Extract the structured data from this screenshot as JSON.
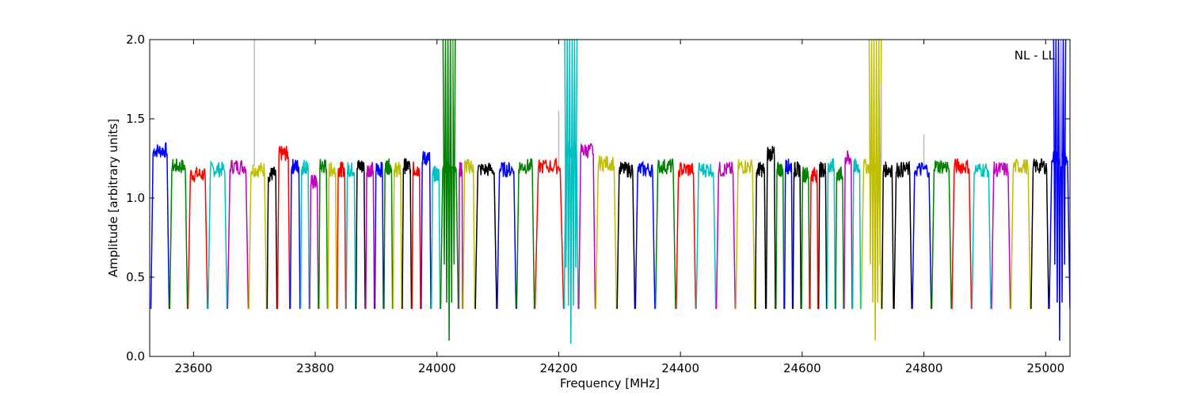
{
  "chart_data": {
    "type": "line",
    "title": "",
    "annotation": "NL - LL",
    "xlabel": "Frequency [MHz]",
    "ylabel": "Amplitude [arbitrary units]",
    "xlim": [
      23528,
      25040
    ],
    "ylim": [
      0.0,
      2.0
    ],
    "xticks": [
      23600,
      23800,
      24000,
      24200,
      24400,
      24600,
      24800,
      25000
    ],
    "yticks": [
      0.0,
      0.5,
      1.0,
      1.5,
      2.0
    ],
    "xtick_labels": [
      "23600",
      "23800",
      "24000",
      "24200",
      "24400",
      "24600",
      "24800",
      "25000"
    ],
    "ytick_labels": [
      "0.0",
      "0.5",
      "1.0",
      "1.5",
      "2.0"
    ],
    "grid": false,
    "legend": "none",
    "color_cycle": [
      "#0000ff",
      "#008000",
      "#ff0000",
      "#00bfbf",
      "#bf00bf",
      "#bfbf00",
      "#000000"
    ],
    "spike_color": "#bbbbbb",
    "spectral_windows": [
      {
        "x_start": 23530,
        "x_end": 23560,
        "color": "#0000ff",
        "level": 1.3
      },
      {
        "x_start": 23561,
        "x_end": 23590,
        "color": "#008000",
        "level": 1.2
      },
      {
        "x_start": 23591,
        "x_end": 23623,
        "color": "#ff0000",
        "level": 1.15
      },
      {
        "x_start": 23624,
        "x_end": 23655,
        "color": "#00bfbf",
        "level": 1.18
      },
      {
        "x_start": 23656,
        "x_end": 23690,
        "color": "#bf00bf",
        "level": 1.2
      },
      {
        "x_start": 23691,
        "x_end": 23720,
        "color": "#bfbf00",
        "level": 1.18
      },
      {
        "x_start": 23721,
        "x_end": 23737,
        "color": "#000000",
        "level": 1.15
      },
      {
        "x_start": 23738,
        "x_end": 23758,
        "color": "#ff0000",
        "level": 1.28
      },
      {
        "x_start": 23759,
        "x_end": 23775,
        "color": "#0000ff",
        "level": 1.2
      },
      {
        "x_start": 23776,
        "x_end": 23790,
        "color": "#00bfbf",
        "level": 1.2
      },
      {
        "x_start": 23791,
        "x_end": 23805,
        "color": "#bf00bf",
        "level": 1.1
      },
      {
        "x_start": 23806,
        "x_end": 23820,
        "color": "#008000",
        "level": 1.2
      },
      {
        "x_start": 23821,
        "x_end": 23835,
        "color": "#bfbf00",
        "level": 1.18
      },
      {
        "x_start": 23836,
        "x_end": 23850,
        "color": "#ff0000",
        "level": 1.18
      },
      {
        "x_start": 23851,
        "x_end": 23866,
        "color": "#00bfbf",
        "level": 1.18
      },
      {
        "x_start": 23867,
        "x_end": 23882,
        "color": "#000000",
        "level": 1.2
      },
      {
        "x_start": 23883,
        "x_end": 23897,
        "color": "#bf00bf",
        "level": 1.18
      },
      {
        "x_start": 23898,
        "x_end": 23912,
        "color": "#0000ff",
        "level": 1.18
      },
      {
        "x_start": 23913,
        "x_end": 23927,
        "color": "#008000",
        "level": 1.2
      },
      {
        "x_start": 23928,
        "x_end": 23942,
        "color": "#bfbf00",
        "level": 1.18
      },
      {
        "x_start": 23943,
        "x_end": 23958,
        "color": "#000000",
        "level": 1.2
      },
      {
        "x_start": 23959,
        "x_end": 23973,
        "color": "#ff0000",
        "level": 1.18
      },
      {
        "x_start": 23974,
        "x_end": 23990,
        "color": "#0000ff",
        "level": 1.25
      },
      {
        "x_start": 23991,
        "x_end": 24005,
        "color": "#00bfbf",
        "level": 1.15
      },
      {
        "x_start": 24006,
        "x_end": 24035,
        "color": "#008000",
        "level": 1.2
      },
      {
        "x_start": 24036,
        "x_end": 24042,
        "color": "#bf00bf",
        "level": 1.18
      },
      {
        "x_start": 24043,
        "x_end": 24062,
        "color": "#bfbf00",
        "level": 1.2
      },
      {
        "x_start": 24063,
        "x_end": 24098,
        "color": "#000000",
        "level": 1.18
      },
      {
        "x_start": 24099,
        "x_end": 24130,
        "color": "#0000ff",
        "level": 1.18
      },
      {
        "x_start": 24131,
        "x_end": 24160,
        "color": "#008000",
        "level": 1.2
      },
      {
        "x_start": 24161,
        "x_end": 24208,
        "color": "#ff0000",
        "level": 1.2
      },
      {
        "x_start": 24209,
        "x_end": 24232,
        "color": "#00bfbf",
        "level": 1.3
      },
      {
        "x_start": 24233,
        "x_end": 24260,
        "color": "#bf00bf",
        "level": 1.3
      },
      {
        "x_start": 24261,
        "x_end": 24295,
        "color": "#bfbf00",
        "level": 1.22
      },
      {
        "x_start": 24296,
        "x_end": 24325,
        "color": "#000000",
        "level": 1.18
      },
      {
        "x_start": 24326,
        "x_end": 24358,
        "color": "#0000ff",
        "level": 1.18
      },
      {
        "x_start": 24359,
        "x_end": 24392,
        "color": "#008000",
        "level": 1.2
      },
      {
        "x_start": 24393,
        "x_end": 24425,
        "color": "#ff0000",
        "level": 1.18
      },
      {
        "x_start": 24426,
        "x_end": 24458,
        "color": "#00bfbf",
        "level": 1.18
      },
      {
        "x_start": 24459,
        "x_end": 24490,
        "color": "#bf00bf",
        "level": 1.18
      },
      {
        "x_start": 24491,
        "x_end": 24522,
        "color": "#bfbf00",
        "level": 1.2
      },
      {
        "x_start": 24523,
        "x_end": 24540,
        "color": "#000000",
        "level": 1.18
      },
      {
        "x_start": 24541,
        "x_end": 24556,
        "color": "#000000",
        "level": 1.28
      },
      {
        "x_start": 24557,
        "x_end": 24570,
        "color": "#008000",
        "level": 1.18
      },
      {
        "x_start": 24571,
        "x_end": 24584,
        "color": "#0000ff",
        "level": 1.2
      },
      {
        "x_start": 24585,
        "x_end": 24598,
        "color": "#000000",
        "level": 1.18
      },
      {
        "x_start": 24599,
        "x_end": 24612,
        "color": "#008000",
        "level": 1.15
      },
      {
        "x_start": 24613,
        "x_end": 24626,
        "color": "#ff0000",
        "level": 1.15
      },
      {
        "x_start": 24627,
        "x_end": 24640,
        "color": "#000000",
        "level": 1.18
      },
      {
        "x_start": 24641,
        "x_end": 24654,
        "color": "#00bfbf",
        "level": 1.2
      },
      {
        "x_start": 24655,
        "x_end": 24668,
        "color": "#008000",
        "level": 1.15
      },
      {
        "x_start": 24669,
        "x_end": 24682,
        "color": "#bf00bf",
        "level": 1.25
      },
      {
        "x_start": 24683,
        "x_end": 24696,
        "color": "#00bfbf",
        "level": 1.2
      },
      {
        "x_start": 24697,
        "x_end": 24730,
        "color": "#bfbf00",
        "level": 1.2
      },
      {
        "x_start": 24731,
        "x_end": 24750,
        "color": "#000000",
        "level": 1.18
      },
      {
        "x_start": 24751,
        "x_end": 24780,
        "color": "#000000",
        "level": 1.18
      },
      {
        "x_start": 24781,
        "x_end": 24812,
        "color": "#0000ff",
        "level": 1.18
      },
      {
        "x_start": 24813,
        "x_end": 24845,
        "color": "#008000",
        "level": 1.2
      },
      {
        "x_start": 24846,
        "x_end": 24878,
        "color": "#ff0000",
        "level": 1.2
      },
      {
        "x_start": 24879,
        "x_end": 24910,
        "color": "#00bfbf",
        "level": 1.18
      },
      {
        "x_start": 24911,
        "x_end": 24942,
        "color": "#bf00bf",
        "level": 1.18
      },
      {
        "x_start": 24943,
        "x_end": 24975,
        "color": "#bfbf00",
        "level": 1.2
      },
      {
        "x_start": 24976,
        "x_end": 25005,
        "color": "#000000",
        "level": 1.2
      },
      {
        "x_start": 25006,
        "x_end": 25040,
        "color": "#0000ff",
        "level": 1.25
      }
    ],
    "features": [
      {
        "x": 24020,
        "min": 0.1,
        "max": 2.0,
        "color": "#008000"
      },
      {
        "x": 24220,
        "min": 0.08,
        "max": 2.0,
        "color": "#00bfbf"
      },
      {
        "x": 24720,
        "min": 0.1,
        "max": 2.0,
        "color": "#bfbf00"
      },
      {
        "x": 25023,
        "min": 0.1,
        "max": 2.0,
        "color": "#0000ff"
      }
    ],
    "spikes": [
      {
        "x": 23700,
        "top": 2.0
      },
      {
        "x": 24025,
        "top": 2.0
      },
      {
        "x": 24200,
        "top": 1.55
      },
      {
        "x": 24730,
        "top": 1.72
      },
      {
        "x": 24800,
        "top": 1.4
      },
      {
        "x": 25025,
        "top": 2.0
      }
    ]
  }
}
